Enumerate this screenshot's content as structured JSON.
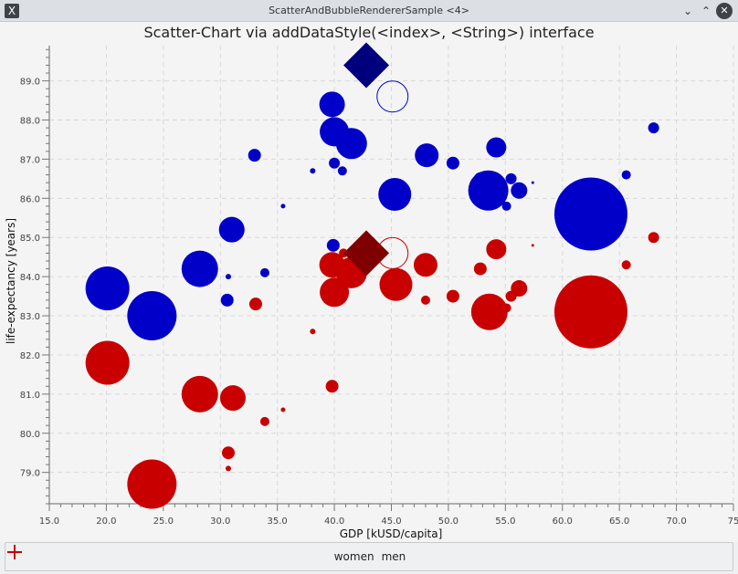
{
  "window": {
    "title": "ScatterAndBubbleRendererSample <4>",
    "app_icon": "x-window-icon",
    "controls": [
      "minimize",
      "maximize",
      "close"
    ]
  },
  "legend": {
    "items": [
      {
        "label": "women",
        "color": "#0000c8"
      },
      {
        "label": "men",
        "color": "#c80000"
      }
    ]
  },
  "chart_data": {
    "type": "scatter",
    "title": "Scatter-Chart via addDataStyle(<index>, <String>) interface",
    "xlabel": "GDP [kUSD/capita]",
    "ylabel": "life-expectancy [years]",
    "xlim": [
      15.0,
      75.0
    ],
    "ylim": [
      78.2,
      89.9
    ],
    "xticks": [
      "15.0",
      "20.0",
      "25.0",
      "30.0",
      "35.0",
      "40.0",
      "45.0",
      "50.0",
      "55.0",
      "60.0",
      "65.0",
      "70.0",
      "75"
    ],
    "yticks": [
      "79.0",
      "80.0",
      "81.0",
      "82.0",
      "83.0",
      "84.0",
      "85.0",
      "86.0",
      "87.0",
      "88.0",
      "89.0"
    ],
    "grid": true,
    "legend_position": "bottom",
    "series": [
      {
        "name": "women",
        "color": "#0000c8",
        "points": [
          {
            "x": 20.1,
            "y": 83.7,
            "r": 24
          },
          {
            "x": 24.0,
            "y": 83.0,
            "r": 27
          },
          {
            "x": 28.2,
            "y": 84.2,
            "r": 20
          },
          {
            "x": 30.6,
            "y": 83.4,
            "r": 7
          },
          {
            "x": 30.7,
            "y": 84.0,
            "r": 3
          },
          {
            "x": 31.0,
            "y": 85.2,
            "r": 14
          },
          {
            "x": 33.0,
            "y": 87.1,
            "r": 7
          },
          {
            "x": 33.9,
            "y": 84.1,
            "r": 5
          },
          {
            "x": 35.5,
            "y": 85.8,
            "r": 2.5
          },
          {
            "x": 38.1,
            "y": 86.7,
            "r": 3
          },
          {
            "x": 39.8,
            "y": 88.4,
            "r": 14
          },
          {
            "x": 39.9,
            "y": 84.8,
            "r": 7
          },
          {
            "x": 40.0,
            "y": 87.7,
            "r": 16
          },
          {
            "x": 40.0,
            "y": 86.9,
            "r": 6
          },
          {
            "x": 40.7,
            "y": 86.7,
            "r": 5
          },
          {
            "x": 41.5,
            "y": 87.4,
            "r": 17
          },
          {
            "x": 45.3,
            "y": 86.1,
            "r": 18
          },
          {
            "x": 48.1,
            "y": 87.1,
            "r": 13
          },
          {
            "x": 50.4,
            "y": 86.9,
            "r": 7
          },
          {
            "x": 52.8,
            "y": 86.5,
            "r": 7
          },
          {
            "x": 53.5,
            "y": 86.2,
            "r": 22
          },
          {
            "x": 54.2,
            "y": 87.3,
            "r": 11
          },
          {
            "x": 55.1,
            "y": 85.8,
            "r": 5
          },
          {
            "x": 55.5,
            "y": 86.5,
            "r": 6
          },
          {
            "x": 56.2,
            "y": 86.2,
            "r": 9
          },
          {
            "x": 57.4,
            "y": 86.4,
            "r": 1.5
          },
          {
            "x": 62.5,
            "y": 85.6,
            "r": 40
          },
          {
            "x": 65.6,
            "y": 86.6,
            "r": 5
          },
          {
            "x": 68.0,
            "y": 87.8,
            "r": 6
          }
        ],
        "highlight_diamond": {
          "x": 42.8,
          "y": 89.4
        },
        "highlight_ring": {
          "x": 45.1,
          "y": 88.6
        }
      },
      {
        "name": "men",
        "color": "#c80000",
        "points": [
          {
            "x": 20.1,
            "y": 81.8,
            "r": 24
          },
          {
            "x": 24.0,
            "y": 78.7,
            "r": 27
          },
          {
            "x": 28.2,
            "y": 81.0,
            "r": 20
          },
          {
            "x": 30.7,
            "y": 79.1,
            "r": 3
          },
          {
            "x": 30.7,
            "y": 79.5,
            "r": 7
          },
          {
            "x": 31.1,
            "y": 80.9,
            "r": 14
          },
          {
            "x": 33.1,
            "y": 83.3,
            "r": 7
          },
          {
            "x": 33.9,
            "y": 80.3,
            "r": 5
          },
          {
            "x": 35.5,
            "y": 80.6,
            "r": 2.5
          },
          {
            "x": 38.1,
            "y": 82.6,
            "r": 3
          },
          {
            "x": 39.8,
            "y": 84.3,
            "r": 14
          },
          {
            "x": 39.8,
            "y": 81.2,
            "r": 7
          },
          {
            "x": 40.0,
            "y": 83.6,
            "r": 16
          },
          {
            "x": 40.8,
            "y": 84.6,
            "r": 5
          },
          {
            "x": 41.5,
            "y": 84.1,
            "r": 17
          },
          {
            "x": 45.4,
            "y": 83.8,
            "r": 18
          },
          {
            "x": 48.0,
            "y": 84.3,
            "r": 13
          },
          {
            "x": 48.0,
            "y": 83.4,
            "r": 5
          },
          {
            "x": 50.4,
            "y": 83.5,
            "r": 7
          },
          {
            "x": 52.8,
            "y": 84.2,
            "r": 7
          },
          {
            "x": 53.6,
            "y": 83.1,
            "r": 20
          },
          {
            "x": 54.2,
            "y": 84.7,
            "r": 11
          },
          {
            "x": 55.1,
            "y": 83.2,
            "r": 5
          },
          {
            "x": 55.5,
            "y": 83.5,
            "r": 6
          },
          {
            "x": 56.2,
            "y": 83.7,
            "r": 9
          },
          {
            "x": 57.4,
            "y": 84.8,
            "r": 1.5
          },
          {
            "x": 62.5,
            "y": 83.1,
            "r": 40
          },
          {
            "x": 65.6,
            "y": 84.3,
            "r": 5
          },
          {
            "x": 68.0,
            "y": 85.0,
            "r": 6
          }
        ],
        "highlight_diamond": {
          "x": 42.8,
          "y": 84.6
        },
        "highlight_ring": {
          "x": 45.1,
          "y": 84.6
        }
      }
    ]
  }
}
